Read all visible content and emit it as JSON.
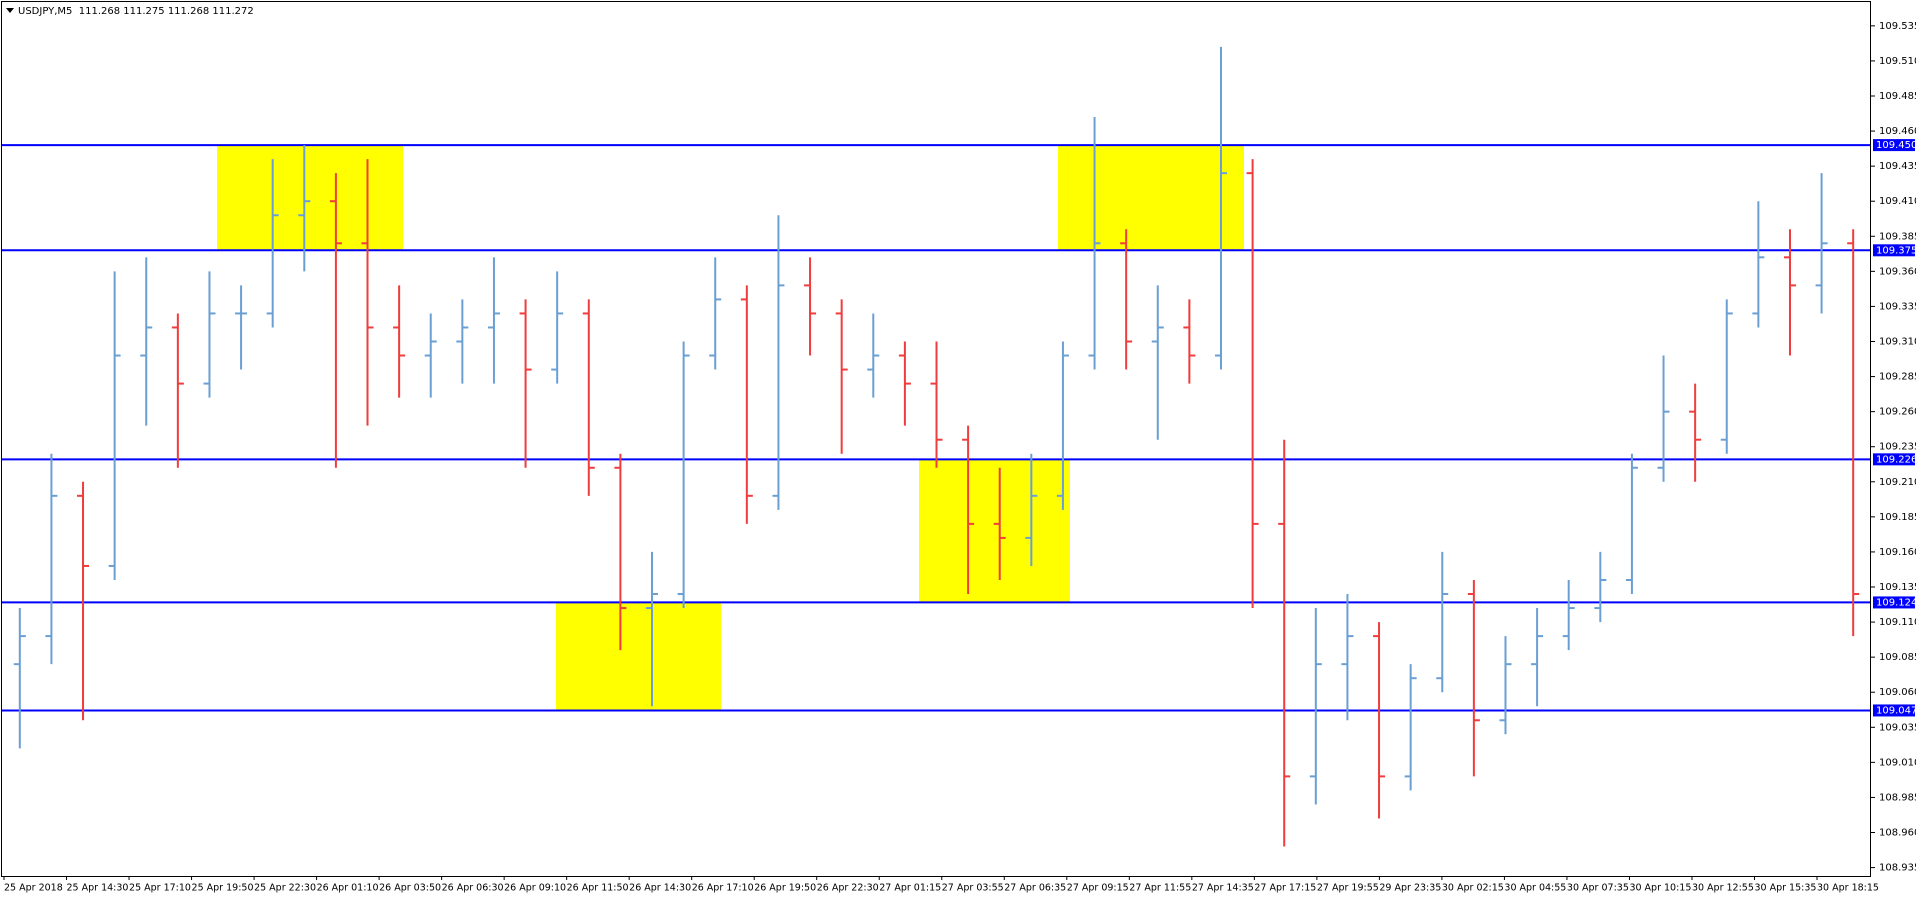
{
  "chart_data": {
    "type": "ohlc",
    "title": "USDJPY,M5  111.268 111.275 111.268 111.272",
    "x_labels": [
      "25 Apr 2018",
      "25 Apr 14:30",
      "25 Apr 17:10",
      "25 Apr 19:50",
      "25 Apr 22:30",
      "26 Apr 01:10",
      "26 Apr 03:50",
      "26 Apr 06:30",
      "26 Apr 09:10",
      "26 Apr 11:50",
      "26 Apr 14:30",
      "26 Apr 17:10",
      "26 Apr 19:50",
      "26 Apr 22:30",
      "27 Apr 01:15",
      "27 Apr 03:55",
      "27 Apr 06:35",
      "27 Apr 09:15",
      "27 Apr 11:55",
      "27 Apr 14:35",
      "27 Apr 17:15",
      "27 Apr 19:55",
      "29 Apr 23:35",
      "30 Apr 02:15",
      "30 Apr 04:55",
      "30 Apr 07:35",
      "30 Apr 10:15",
      "30 Apr 12:55",
      "30 Apr 15:35",
      "30 Apr 18:15"
    ],
    "open": [
      109.08,
      109.1,
      109.2,
      109.15,
      109.3,
      109.32,
      109.28,
      109.33,
      109.33,
      109.4,
      109.41,
      109.38,
      109.32,
      109.3,
      109.31,
      109.32,
      109.33,
      109.29,
      109.33,
      109.22,
      109.12,
      109.13,
      109.3,
      109.34,
      109.2,
      109.35,
      109.33,
      109.29,
      109.3,
      109.28,
      109.24,
      109.18,
      109.17,
      109.2,
      109.3,
      109.38,
      109.31,
      109.32,
      109.3,
      109.43,
      109.18,
      109.0,
      109.08,
      109.1,
      109.0,
      109.07,
      109.13,
      109.04,
      109.08,
      109.1,
      109.12,
      109.14,
      109.22,
      109.26,
      109.24,
      109.33,
      109.37,
      109.35,
      109.38
    ],
    "high": [
      109.12,
      109.23,
      109.21,
      109.36,
      109.37,
      109.33,
      109.36,
      109.35,
      109.44,
      109.45,
      109.43,
      109.44,
      109.35,
      109.33,
      109.34,
      109.37,
      109.34,
      109.36,
      109.34,
      109.23,
      109.16,
      109.31,
      109.37,
      109.35,
      109.4,
      109.37,
      109.34,
      109.33,
      109.31,
      109.31,
      109.25,
      109.22,
      109.23,
      109.31,
      109.47,
      109.39,
      109.35,
      109.34,
      109.52,
      109.44,
      109.24,
      109.12,
      109.13,
      109.11,
      109.08,
      109.16,
      109.14,
      109.1,
      109.12,
      109.14,
      109.16,
      109.23,
      109.3,
      109.28,
      109.34,
      109.41,
      109.39,
      109.43,
      109.39
    ],
    "low": [
      109.02,
      109.08,
      109.04,
      109.14,
      109.25,
      109.22,
      109.27,
      109.29,
      109.32,
      109.36,
      109.22,
      109.25,
      109.27,
      109.27,
      109.28,
      109.28,
      109.22,
      109.28,
      109.2,
      109.09,
      109.05,
      109.12,
      109.29,
      109.18,
      109.19,
      109.3,
      109.23,
      109.27,
      109.25,
      109.22,
      109.13,
      109.14,
      109.15,
      109.19,
      109.29,
      109.29,
      109.24,
      109.28,
      109.29,
      109.12,
      108.95,
      108.98,
      109.04,
      108.97,
      108.99,
      109.06,
      109.0,
      109.03,
      109.05,
      109.09,
      109.11,
      109.13,
      109.21,
      109.21,
      109.23,
      109.32,
      109.3,
      109.33,
      109.1
    ],
    "close": [
      109.1,
      109.2,
      109.15,
      109.3,
      109.32,
      109.28,
      109.33,
      109.33,
      109.4,
      109.41,
      109.38,
      109.32,
      109.3,
      109.31,
      109.32,
      109.33,
      109.29,
      109.33,
      109.22,
      109.12,
      109.13,
      109.3,
      109.34,
      109.2,
      109.35,
      109.33,
      109.29,
      109.3,
      109.28,
      109.24,
      109.18,
      109.17,
      109.2,
      109.3,
      109.38,
      109.31,
      109.32,
      109.3,
      109.43,
      109.18,
      109.0,
      109.08,
      109.1,
      109.0,
      109.07,
      109.13,
      109.04,
      109.08,
      109.1,
      109.12,
      109.14,
      109.22,
      109.26,
      109.24,
      109.33,
      109.37,
      109.35,
      109.38,
      109.13
    ],
    "up_color": "#6a9fd4",
    "down_color": "#f03c3c",
    "ylim": [
      108.929,
      109.552
    ],
    "yticks": [
      108.935,
      {
        "value": 108.96,
        "label": "108.960"
      },
      108.985,
      {
        "value": 109.01,
        "label": "109.010"
      },
      109.035,
      {
        "value": 109.06,
        "label": "109.060"
      },
      109.085,
      {
        "value": 109.11,
        "label": "109.110"
      },
      109.135,
      {
        "value": 109.16,
        "label": "109.160"
      },
      109.185,
      {
        "value": 109.21,
        "label": "109.210"
      },
      109.235,
      {
        "value": 109.26,
        "label": "109.260"
      },
      109.285,
      {
        "value": 109.31,
        "label": "109.310"
      },
      109.335,
      {
        "value": 109.36,
        "label": "109.360"
      },
      109.385,
      {
        "value": 109.41,
        "label": "109.410"
      },
      109.435,
      {
        "value": 109.46,
        "label": "109.460"
      },
      109.485,
      {
        "value": 109.51,
        "label": "109.510"
      },
      109.535
    ],
    "levels": [
      {
        "value": 109.45,
        "label": "109.450"
      },
      109.375,
      109.226,
      109.124,
      109.047
    ],
    "level_color": "#0000ff",
    "zones": [
      {
        "low": 109.375,
        "high": 109.45
      },
      {
        "low": 109.047,
        "high": 109.124
      },
      {
        "low": 109.124,
        "high": 109.226
      },
      {
        "low": 109.375,
        "high": 109.45
      }
    ],
    "zone_color": "#ffff00"
  }
}
